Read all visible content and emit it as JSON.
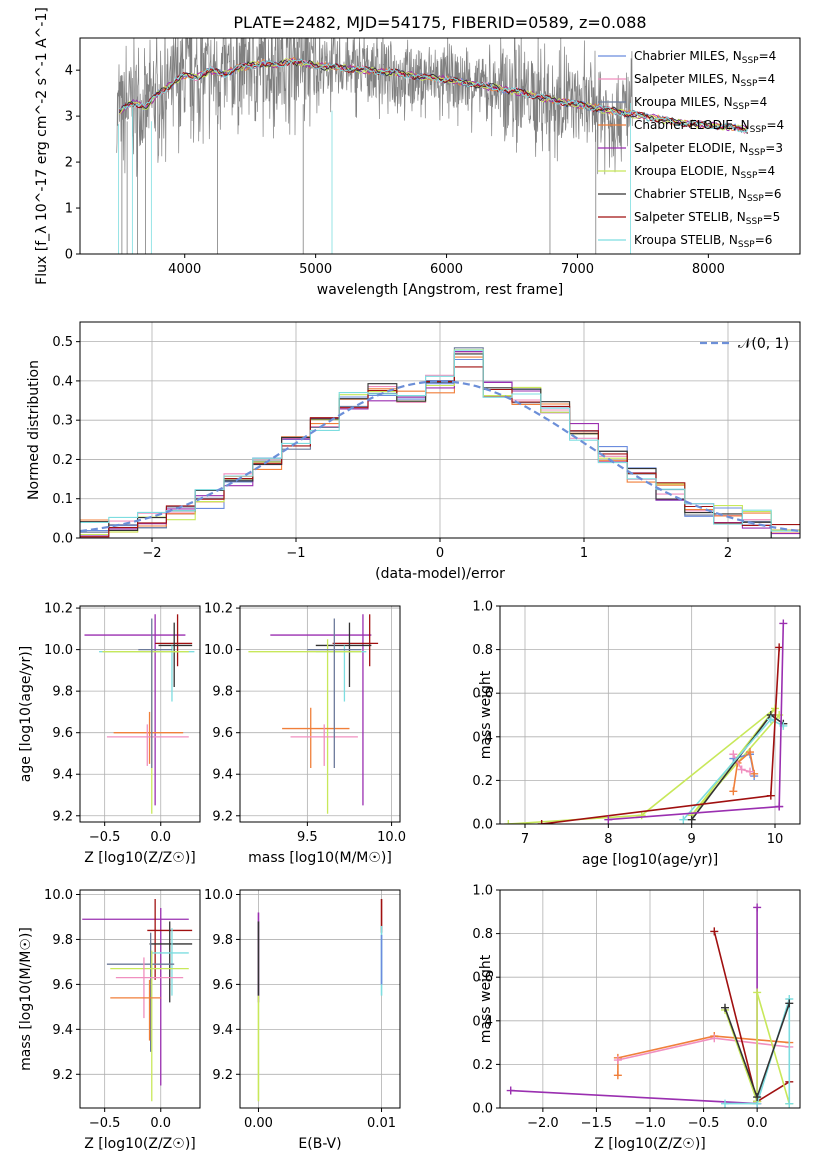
{
  "title": "PLATE=2482, MJD=54175, FIBERID=0589, z=0.088",
  "colors": {
    "Chabrier MILES": "#6b8cde",
    "Salpeter MILES": "#f08fbf",
    "Kroupa MILES": "#6c7a9a",
    "Chabrier ELODIE": "#f07f3a",
    "Salpeter ELODIE": "#9a2fb0",
    "Kroupa ELODIE": "#c8e85a",
    "Chabrier STELIB": "#333333",
    "Salpeter STELIB": "#a01010",
    "Kroupa STELIB": "#7ddde0",
    "spectrum": "#808080",
    "normal": "#6c8fd8"
  },
  "chart_data": [
    {
      "type": "line",
      "panel": "spectrum",
      "title": "PLATE=2482, MJD=54175, FIBERID=0589, z=0.088",
      "xlabel": "wavelength [Angstrom, rest frame]",
      "ylabel": "Flux [f_λ 10^-17 erg cm^-2 s^-1 A^-1]",
      "xlim": [
        3200,
        8700
      ],
      "ylim": [
        0,
        4.7
      ],
      "xticks": [
        "4000",
        "5000",
        "6000",
        "7000",
        "8000"
      ],
      "yticks": [
        "0",
        "1",
        "2",
        "3",
        "4"
      ],
      "legend_position": "right",
      "legend": [
        "Chabrier MILES, N_SSP=4",
        "Salpeter MILES, N_SSP=4",
        "Kroupa MILES, N_SSP=4",
        "Chabrier ELODIE, N_SSP=4",
        "Salpeter ELODIE, N_SSP=3",
        "Kroupa ELODIE, N_SSP=4",
        "Chabrier STELIB, N_SSP=6",
        "Salpeter STELIB, N_SSP=5",
        "Kroupa STELIB, N_SSP=6"
      ],
      "model_x": [
        3500,
        3600,
        3700,
        3800,
        3900,
        4000,
        4100,
        4200,
        4300,
        4400,
        4500,
        4600,
        4700,
        4800,
        4900,
        5000,
        5200,
        5400,
        5600,
        5800,
        6000,
        6200,
        6400,
        6600,
        6800,
        7000,
        7200,
        7400,
        7600,
        7800,
        8000,
        8200,
        8300
      ],
      "model_y": [
        3.1,
        3.3,
        3.2,
        3.5,
        3.7,
        3.9,
        3.85,
        4.0,
        3.9,
        4.05,
        4.1,
        4.15,
        4.1,
        4.2,
        4.15,
        4.1,
        4.05,
        4.0,
        3.95,
        3.85,
        3.8,
        3.7,
        3.6,
        3.5,
        3.35,
        3.25,
        3.15,
        3.05,
        2.95,
        2.85,
        2.8,
        2.75,
        2.7
      ],
      "grid": false
    },
    {
      "type": "line",
      "panel": "residual distribution",
      "xlabel": "(data-model)/error",
      "ylabel": "Normed distribution",
      "xlim": [
        -2.5,
        2.5
      ],
      "ylim": [
        0,
        0.55
      ],
      "xticks": [
        "−2",
        "−1",
        "0",
        "1",
        "2"
      ],
      "yticks": [
        "0.0",
        "0.1",
        "0.2",
        "0.3",
        "0.4",
        "0.5"
      ],
      "legend": [
        "𝒩(0, 1)"
      ],
      "legend_position": "top-right",
      "bin_edges": [
        -2.5,
        -2.3,
        -2.1,
        -1.9,
        -1.7,
        -1.5,
        -1.3,
        -1.1,
        -0.9,
        -0.7,
        -0.5,
        -0.3,
        -0.1,
        0.1,
        0.3,
        0.5,
        0.7,
        0.9,
        1.1,
        1.3,
        1.5,
        1.7,
        1.9,
        2.1,
        2.3,
        2.5
      ],
      "hist_center": [
        0.025,
        0.035,
        0.045,
        0.07,
        0.1,
        0.15,
        0.19,
        0.24,
        0.29,
        0.35,
        0.37,
        0.36,
        0.39,
        0.46,
        0.38,
        0.36,
        0.33,
        0.27,
        0.21,
        0.16,
        0.12,
        0.08,
        0.06,
        0.05,
        0.02
      ],
      "grid": true
    },
    {
      "type": "scatter",
      "panel": "age vs Z",
      "xlabel": "Z [log10(Z/Z☉)]",
      "ylabel": "age [log10(age/yr)]",
      "xlim": [
        -0.72,
        0.35
      ],
      "ylim": [
        9.17,
        10.21
      ],
      "xticks": [
        "−0.5",
        "0.0"
      ],
      "yticks": [
        "9.2",
        "9.4",
        "9.6",
        "9.8",
        "10.0",
        "10.2"
      ],
      "grid": true
    },
    {
      "type": "scatter",
      "panel": "age vs mass",
      "xlabel": "mass [log10(M/M☉)]",
      "xlim": [
        9.1,
        10.05
      ],
      "ylim": [
        9.17,
        10.21
      ],
      "xticks": [
        "9.5",
        "10.0"
      ],
      "yticks": [
        "9.2",
        "9.4",
        "9.6",
        "9.8",
        "10.0",
        "10.2"
      ],
      "grid": true
    },
    {
      "type": "line",
      "panel": "mass weight vs age",
      "xlabel": "age [log10(age/yr)]",
      "ylabel": "mass weight",
      "xlim": [
        6.7,
        10.3
      ],
      "ylim": [
        0,
        1.0
      ],
      "xticks": [
        "7",
        "8",
        "9",
        "10"
      ],
      "yticks": [
        "0.0",
        "0.2",
        "0.4",
        "0.6",
        "0.8",
        "1.0"
      ],
      "grid": true
    },
    {
      "type": "scatter",
      "panel": "mass vs Z",
      "xlabel": "Z [log10(Z/Z☉)]",
      "ylabel": "mass [log10(M/M☉)]",
      "xlim": [
        -0.72,
        0.35
      ],
      "ylim": [
        9.05,
        10.02
      ],
      "xticks": [
        "−0.5",
        "0.0"
      ],
      "yticks": [
        "9.2",
        "9.4",
        "9.6",
        "9.8",
        "10.0"
      ],
      "grid": true
    },
    {
      "type": "scatter",
      "panel": "mass vs E(B-V)",
      "xlabel": "E(B-V)",
      "xlim": [
        -0.0015,
        0.0115
      ],
      "ylim": [
        9.05,
        10.02
      ],
      "xticks": [
        "0.00",
        "0.01"
      ],
      "yticks": [
        "9.2",
        "9.4",
        "9.6",
        "9.8",
        "10.0"
      ],
      "grid": true
    },
    {
      "type": "line",
      "panel": "mass weight vs Z",
      "xlabel": "Z [log10(Z/Z☉)]",
      "ylabel": "mass weight",
      "xlim": [
        -2.4,
        0.4
      ],
      "ylim": [
        0,
        1.0
      ],
      "xticks": [
        "−2.0",
        "−1.5",
        "−1.0",
        "−0.5",
        "0.0"
      ],
      "yticks": [
        "0.0",
        "0.2",
        "0.4",
        "0.6",
        "0.8",
        "1.0"
      ],
      "grid": true
    }
  ]
}
